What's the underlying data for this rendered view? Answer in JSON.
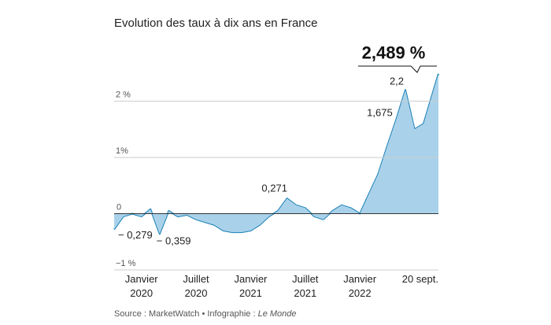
{
  "chart_data": {
    "type": "area",
    "title": "Evolution des taux à dix ans en France",
    "source": [
      "Source : MarketWatch • Infographie :",
      "Le Monde"
    ],
    "x": [
      "2019-10",
      "2019-11",
      "2019-12",
      "2020-01",
      "2020-02",
      "2020-03",
      "2020-04",
      "2020-05",
      "2020-06",
      "2020-07",
      "2020-08",
      "2020-09",
      "2020-10",
      "2020-11",
      "2020-12",
      "2021-01",
      "2021-02",
      "2021-03",
      "2021-04",
      "2021-05",
      "2021-06",
      "2021-07",
      "2021-08",
      "2021-09",
      "2021-10",
      "2021-11",
      "2021-12",
      "2022-01",
      "2022-02",
      "2022-03",
      "2022-04",
      "2022-05",
      "2022-06",
      "2022-07",
      "2022-08",
      "2022-09-20"
    ],
    "values": [
      -0.279,
      -0.05,
      0.0,
      -0.05,
      0.08,
      -0.359,
      0.05,
      -0.05,
      -0.02,
      -0.1,
      -0.15,
      -0.2,
      -0.3,
      -0.33,
      -0.33,
      -0.3,
      -0.2,
      -0.05,
      0.05,
      0.271,
      0.15,
      0.1,
      -0.05,
      -0.1,
      0.05,
      0.15,
      0.1,
      0.0,
      0.35,
      0.7,
      1.2,
      1.675,
      2.2,
      1.5,
      1.6,
      2.489
    ],
    "value_labels": [
      "− 0,279",
      null,
      null,
      null,
      null,
      "− 0,359",
      null,
      null,
      null,
      null,
      null,
      null,
      null,
      null,
      null,
      null,
      null,
      null,
      null,
      "0,271",
      null,
      null,
      null,
      null,
      null,
      null,
      null,
      null,
      null,
      null,
      null,
      "1,675",
      "2,2",
      null,
      null,
      "2,489 %"
    ],
    "color": "#1a7fb5",
    "fill": "#a9d2ea",
    "xlim": [
      "2019-10",
      "2022-09-20"
    ],
    "xticks": [
      {
        "value": "2020-01",
        "label": [
          "Janvier",
          "2020"
        ]
      },
      {
        "value": "2020-07",
        "label": [
          "Juillet",
          "2020"
        ]
      },
      {
        "value": "2021-01",
        "label": [
          "Janvier",
          "2021"
        ]
      },
      {
        "value": "2021-07",
        "label": [
          "Juillet",
          "2021"
        ]
      },
      {
        "value": "2022-01",
        "label": [
          "Janvier",
          "2022"
        ]
      },
      {
        "value": "2022-09-20",
        "label": [
          "20 sept."
        ]
      }
    ],
    "ylim": [
      -1.0,
      2.75
    ],
    "yticks": [
      {
        "value": -1,
        "label": "−1 %"
      },
      0,
      {
        "value": 1,
        "label": "1%"
      },
      {
        "value": 2,
        "label": "2 %"
      }
    ],
    "grid": true
  }
}
